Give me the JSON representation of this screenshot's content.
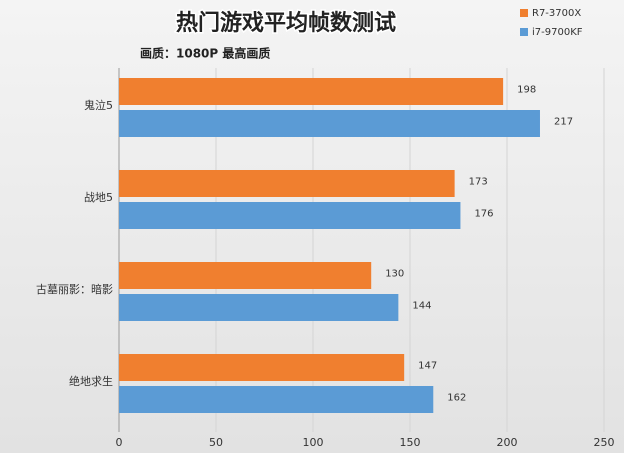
{
  "chart_data": {
    "type": "bar",
    "orientation": "horizontal",
    "title": "热门游戏平均帧数测试",
    "subtitle": "画质：1080P 最高画质",
    "categories": [
      "鬼泣5",
      "战地5",
      "古墓丽影：暗影",
      "绝地求生"
    ],
    "series": [
      {
        "name": "R7-3700X",
        "color": "#f07f2f",
        "values": [
          198,
          173,
          130,
          147
        ]
      },
      {
        "name": "i7-9700KF",
        "color": "#5b9bd5",
        "values": [
          217,
          176,
          144,
          162
        ]
      }
    ],
    "xlim": [
      0,
      250
    ],
    "xticks": [
      0,
      50,
      100,
      150,
      200,
      250
    ],
    "grid": true
  }
}
